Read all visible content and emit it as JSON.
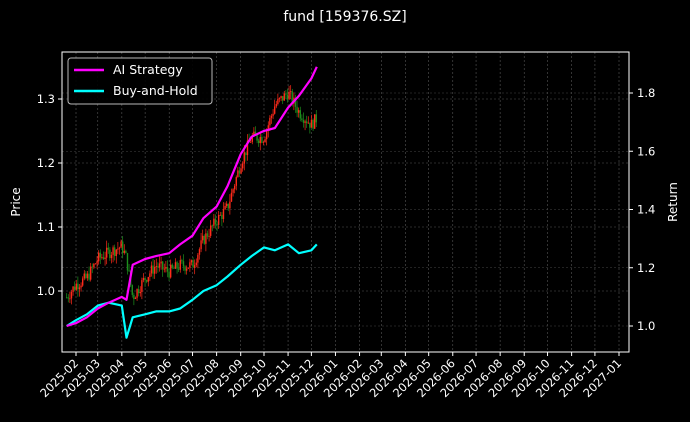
{
  "title": "fund [159376.SZ]",
  "chart_data": {
    "type": "line",
    "title": "fund [159376.SZ]",
    "xlabel": "",
    "ylabel": "Price",
    "ylabel_right": "Return",
    "x_ticks": [
      "2025-02",
      "2025-03",
      "2025-04",
      "2025-05",
      "2025-06",
      "2025-07",
      "2025-08",
      "2025-09",
      "2025-10",
      "2025-11",
      "2025-12",
      "2026-01",
      "2026-02",
      "2026-03",
      "2026-04",
      "2026-05",
      "2026-06",
      "2026-07",
      "2026-08",
      "2026-09",
      "2026-10",
      "2026-11",
      "2026-12",
      "2027-01"
    ],
    "y_ticks_left": [
      1.0,
      1.1,
      1.2,
      1.3
    ],
    "y_ticks_right": [
      1.0,
      1.2,
      1.4,
      1.6,
      1.8
    ],
    "ylim_left": [
      0.92,
      1.373
    ],
    "ylim_right": [
      0.91,
      1.94
    ],
    "grid": true,
    "legend_position": "upper left",
    "legend": [
      "AI Strategy",
      "Buy-and-Hold"
    ],
    "series": [
      {
        "name": "Price (candlesticks)",
        "axis": "left",
        "style": "candlestick red/green",
        "x": [
          "2025-01-20",
          "2025-02-01",
          "2025-02-15",
          "2025-03-01",
          "2025-03-15",
          "2025-04-01",
          "2025-04-07",
          "2025-04-15",
          "2025-05-01",
          "2025-05-15",
          "2025-06-01",
          "2025-06-15",
          "2025-07-01",
          "2025-07-15",
          "2025-08-01",
          "2025-08-15",
          "2025-09-01",
          "2025-09-15",
          "2025-10-01",
          "2025-10-15",
          "2025-11-01",
          "2025-11-15",
          "2025-12-01",
          "2025-12-08"
        ],
        "values": [
          0.99,
          1.01,
          1.02,
          1.05,
          1.06,
          1.07,
          1.05,
          0.99,
          1.02,
          1.04,
          1.03,
          1.04,
          1.04,
          1.08,
          1.11,
          1.13,
          1.2,
          1.24,
          1.24,
          1.29,
          1.31,
          1.28,
          1.26,
          1.27
        ]
      },
      {
        "name": "AI Strategy",
        "axis": "right",
        "color": "#ff00ff",
        "x": [
          "2025-01-20",
          "2025-02-01",
          "2025-02-15",
          "2025-03-01",
          "2025-03-15",
          "2025-04-01",
          "2025-04-07",
          "2025-04-15",
          "2025-05-01",
          "2025-05-15",
          "2025-06-01",
          "2025-06-15",
          "2025-07-01",
          "2025-07-15",
          "2025-08-01",
          "2025-08-15",
          "2025-09-01",
          "2025-09-15",
          "2025-10-01",
          "2025-10-15",
          "2025-11-01",
          "2025-11-15",
          "2025-12-01",
          "2025-12-08"
        ],
        "values": [
          1.0,
          1.01,
          1.03,
          1.06,
          1.08,
          1.1,
          1.09,
          1.21,
          1.23,
          1.24,
          1.25,
          1.28,
          1.31,
          1.37,
          1.41,
          1.48,
          1.59,
          1.65,
          1.67,
          1.68,
          1.75,
          1.79,
          1.85,
          1.89
        ]
      },
      {
        "name": "Buy-and-Hold",
        "axis": "right",
        "color": "#00ffff",
        "x": [
          "2025-01-20",
          "2025-02-01",
          "2025-02-15",
          "2025-03-01",
          "2025-03-15",
          "2025-04-01",
          "2025-04-07",
          "2025-04-15",
          "2025-05-01",
          "2025-05-15",
          "2025-06-01",
          "2025-06-15",
          "2025-07-01",
          "2025-07-15",
          "2025-08-01",
          "2025-08-15",
          "2025-09-01",
          "2025-09-15",
          "2025-10-01",
          "2025-10-15",
          "2025-11-01",
          "2025-11-15",
          "2025-12-01",
          "2025-12-08"
        ],
        "values": [
          1.0,
          1.02,
          1.04,
          1.07,
          1.08,
          1.07,
          0.96,
          1.03,
          1.04,
          1.05,
          1.05,
          1.06,
          1.09,
          1.12,
          1.14,
          1.17,
          1.21,
          1.24,
          1.27,
          1.26,
          1.28,
          1.25,
          1.26,
          1.28
        ]
      }
    ]
  }
}
